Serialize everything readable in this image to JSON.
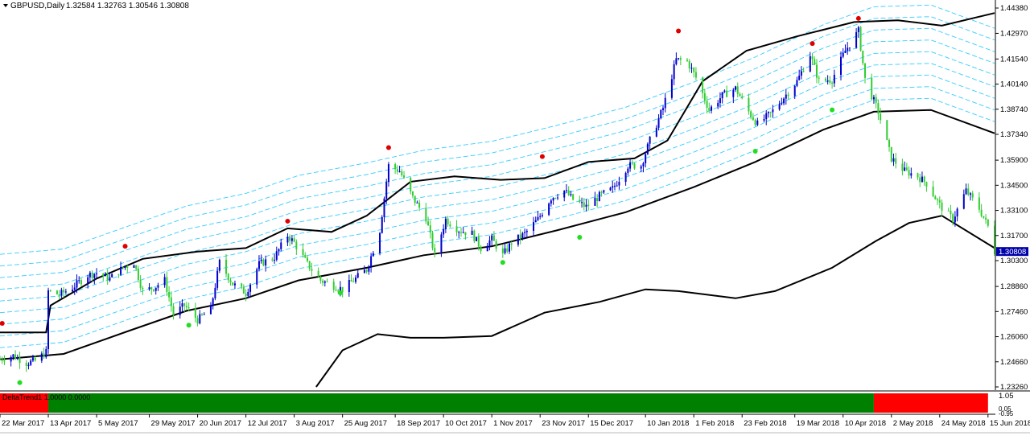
{
  "header": {
    "symbol": "GBPUSD,Daily",
    "ohlc": "1.32584 1.32763 1.30546 1.30808"
  },
  "indicator": {
    "label": "DeltaTrend1 1.0000 0.0000",
    "bull_color": "#008000",
    "bear_color": "#ff0000",
    "segments": [
      {
        "from": "22 Mar 2017",
        "to": "13 Apr 2017",
        "state": "bear"
      },
      {
        "from": "13 Apr 2017",
        "to": "24 Apr 2018",
        "state": "bull"
      },
      {
        "from": "24 Apr 2018",
        "to": "15 Jun 2018",
        "state": "bear"
      }
    ],
    "scale": [
      "1.05",
      "0.05",
      "-0.95"
    ]
  },
  "colors": {
    "bull_candle": "#0000cd",
    "bear_candle": "#32cd32",
    "band": "#000000",
    "ribbon": "#00bfff",
    "top_dot": "#e00000",
    "bottom_dot": "#22dd22",
    "price_tag": "#0000aa"
  },
  "chart_data": {
    "type": "candlestick",
    "x_axis": {
      "tick_labels": [
        "22 Mar 2017",
        "13 Apr 2017",
        "5 May 2017",
        "29 May 2017",
        "20 Jun 2017",
        "12 Jul 2017",
        "3 Aug 2017",
        "25 Aug 2017",
        "18 Sep 2017",
        "10 Oct 2017",
        "1 Nov 2017",
        "23 Nov 2017",
        "15 Dec 2017",
        "10 Jan 2018",
        "1 Feb 2018",
        "23 Feb 2018",
        "19 Mar 2018",
        "10 Apr 2018",
        "2 May 2018",
        "24 May 2018",
        "15 Jun 2018"
      ],
      "range": [
        "2017-03-22",
        "2018-06-18"
      ]
    },
    "y_axis": {
      "tick_labels": [
        "1.44380",
        "1.42970",
        "1.41540",
        "1.40140",
        "1.38740",
        "1.37340",
        "1.35900",
        "1.34500",
        "1.33100",
        "1.31700",
        "1.30300",
        "1.28860",
        "1.27460",
        "1.26060",
        "1.24660",
        "1.23260"
      ],
      "range": [
        1.2326,
        1.4438
      ]
    },
    "last_price": "1.30808",
    "close_path": [
      [
        "2017-03-22",
        1.248
      ],
      [
        "2017-03-28",
        1.25
      ],
      [
        "2017-04-03",
        1.246
      ],
      [
        "2017-04-07",
        1.247
      ],
      [
        "2017-04-12",
        1.252
      ],
      [
        "2017-04-13",
        1.286
      ],
      [
        "2017-04-18",
        1.284
      ],
      [
        "2017-04-24",
        1.288
      ],
      [
        "2017-05-01",
        1.295
      ],
      [
        "2017-05-05",
        1.296
      ],
      [
        "2017-05-11",
        1.293
      ],
      [
        "2017-05-17",
        1.299
      ],
      [
        "2017-05-22",
        1.302
      ],
      [
        "2017-05-26",
        1.286
      ],
      [
        "2017-05-31",
        1.288
      ],
      [
        "2017-06-05",
        1.292
      ],
      [
        "2017-06-09",
        1.273
      ],
      [
        "2017-06-14",
        1.278
      ],
      [
        "2017-06-20",
        1.27
      ],
      [
        "2017-06-26",
        1.276
      ],
      [
        "2017-06-30",
        1.302
      ],
      [
        "2017-07-06",
        1.29
      ],
      [
        "2017-07-12",
        1.285
      ],
      [
        "2017-07-18",
        1.301
      ],
      [
        "2017-07-25",
        1.305
      ],
      [
        "2017-07-31",
        1.317
      ],
      [
        "2017-08-03",
        1.313
      ],
      [
        "2017-08-09",
        1.301
      ],
      [
        "2017-08-15",
        1.292
      ],
      [
        "2017-08-21",
        1.289
      ],
      [
        "2017-08-25",
        1.287
      ],
      [
        "2017-08-31",
        1.293
      ],
      [
        "2017-09-05",
        1.298
      ],
      [
        "2017-09-11",
        1.32
      ],
      [
        "2017-09-15",
        1.356
      ],
      [
        "2017-09-20",
        1.353
      ],
      [
        "2017-09-26",
        1.338
      ],
      [
        "2017-10-02",
        1.327
      ],
      [
        "2017-10-06",
        1.306
      ],
      [
        "2017-10-11",
        1.326
      ],
      [
        "2017-10-17",
        1.32
      ],
      [
        "2017-10-23",
        1.318
      ],
      [
        "2017-10-27",
        1.31
      ],
      [
        "2017-11-01",
        1.315
      ],
      [
        "2017-11-06",
        1.306
      ],
      [
        "2017-11-10",
        1.313
      ],
      [
        "2017-11-16",
        1.318
      ],
      [
        "2017-11-22",
        1.326
      ],
      [
        "2017-11-28",
        1.338
      ],
      [
        "2017-12-04",
        1.342
      ],
      [
        "2017-12-08",
        1.337
      ],
      [
        "2017-12-14",
        1.333
      ],
      [
        "2017-12-20",
        1.339
      ],
      [
        "2017-12-26",
        1.343
      ],
      [
        "2018-01-02",
        1.356
      ],
      [
        "2018-01-08",
        1.356
      ],
      [
        "2018-01-12",
        1.37
      ],
      [
        "2018-01-18",
        1.388
      ],
      [
        "2018-01-24",
        1.415
      ],
      [
        "2018-01-29",
        1.414
      ],
      [
        "2018-02-02",
        1.405
      ],
      [
        "2018-02-08",
        1.387
      ],
      [
        "2018-02-14",
        1.395
      ],
      [
        "2018-02-20",
        1.399
      ],
      [
        "2018-02-26",
        1.386
      ],
      [
        "2018-03-02",
        1.379
      ],
      [
        "2018-03-08",
        1.385
      ],
      [
        "2018-03-14",
        1.394
      ],
      [
        "2018-03-20",
        1.403
      ],
      [
        "2018-03-26",
        1.418
      ],
      [
        "2018-03-30",
        1.403
      ],
      [
        "2018-04-05",
        1.404
      ],
      [
        "2018-04-11",
        1.42
      ],
      [
        "2018-04-17",
        1.431
      ],
      [
        "2018-04-20",
        1.404
      ],
      [
        "2018-04-26",
        1.386
      ],
      [
        "2018-05-02",
        1.36
      ],
      [
        "2018-05-08",
        1.353
      ],
      [
        "2018-05-14",
        1.35
      ],
      [
        "2018-05-18",
        1.346
      ],
      [
        "2018-05-24",
        1.334
      ],
      [
        "2018-05-30",
        1.326
      ],
      [
        "2018-06-05",
        1.342
      ],
      [
        "2018-06-11",
        1.332
      ],
      [
        "2018-06-15",
        1.322
      ],
      [
        "2018-06-18",
        1.3081
      ]
    ],
    "upper_band": [
      [
        "2017-03-22",
        1.263
      ],
      [
        "2017-04-12",
        1.263
      ],
      [
        "2017-04-14",
        1.278
      ],
      [
        "2017-05-05",
        1.293
      ],
      [
        "2017-05-26",
        1.304
      ],
      [
        "2017-06-20",
        1.308
      ],
      [
        "2017-07-12",
        1.31
      ],
      [
        "2017-07-31",
        1.321
      ],
      [
        "2017-08-20",
        1.319
      ],
      [
        "2017-09-05",
        1.328
      ],
      [
        "2017-09-25",
        1.347
      ],
      [
        "2017-10-15",
        1.35
      ],
      [
        "2017-11-05",
        1.348
      ],
      [
        "2017-11-25",
        1.349
      ],
      [
        "2017-12-15",
        1.358
      ],
      [
        "2018-01-05",
        1.36
      ],
      [
        "2018-01-20",
        1.37
      ],
      [
        "2018-02-05",
        1.403
      ],
      [
        "2018-02-25",
        1.42
      ],
      [
        "2018-03-20",
        1.428
      ],
      [
        "2018-04-15",
        1.436
      ],
      [
        "2018-05-05",
        1.437
      ],
      [
        "2018-05-25",
        1.434
      ],
      [
        "2018-06-18",
        1.441
      ]
    ],
    "middle_band": [
      [
        "2017-03-22",
        1.248
      ],
      [
        "2017-04-20",
        1.251
      ],
      [
        "2017-05-20",
        1.264
      ],
      [
        "2017-06-15",
        1.275
      ],
      [
        "2017-07-12",
        1.282
      ],
      [
        "2017-08-05",
        1.292
      ],
      [
        "2017-09-05",
        1.299
      ],
      [
        "2017-10-01",
        1.306
      ],
      [
        "2017-11-01",
        1.311
      ],
      [
        "2017-12-01",
        1.32
      ],
      [
        "2018-01-01",
        1.33
      ],
      [
        "2018-02-01",
        1.344
      ],
      [
        "2018-03-01",
        1.358
      ],
      [
        "2018-04-01",
        1.376
      ],
      [
        "2018-04-24",
        1.386
      ],
      [
        "2018-05-20",
        1.387
      ],
      [
        "2018-06-18",
        1.374
      ]
    ],
    "lower_band": [
      [
        "2017-08-13",
        1.2326
      ],
      [
        "2017-08-25",
        1.253
      ],
      [
        "2017-09-10",
        1.262
      ],
      [
        "2017-09-25",
        1.26
      ],
      [
        "2017-10-10",
        1.26
      ],
      [
        "2017-11-01",
        1.261
      ],
      [
        "2017-11-25",
        1.274
      ],
      [
        "2017-12-20",
        1.28
      ],
      [
        "2018-01-10",
        1.287
      ],
      [
        "2018-01-25",
        1.286
      ],
      [
        "2018-02-20",
        1.282
      ],
      [
        "2018-03-10",
        1.286
      ],
      [
        "2018-04-05",
        1.299
      ],
      [
        "2018-04-25",
        1.314
      ],
      [
        "2018-05-10",
        1.324
      ],
      [
        "2018-05-25",
        1.328
      ],
      [
        "2018-06-18",
        1.31
      ]
    ],
    "top_markers": [
      [
        "2017-03-23",
        1.268
      ],
      [
        "2017-05-18",
        1.311
      ],
      [
        "2017-07-31",
        1.325
      ],
      [
        "2017-09-15",
        1.366
      ],
      [
        "2017-11-24",
        1.361
      ],
      [
        "2018-01-25",
        1.431
      ],
      [
        "2018-03-27",
        1.424
      ],
      [
        "2018-04-17",
        1.438
      ]
    ],
    "bottom_markers": [
      [
        "2017-03-31",
        1.235
      ],
      [
        "2017-06-16",
        1.267
      ],
      [
        "2017-08-24",
        1.285
      ],
      [
        "2017-11-06",
        1.302
      ],
      [
        "2017-12-11",
        1.316
      ],
      [
        "2018-03-01",
        1.364
      ],
      [
        "2018-04-05",
        1.387
      ]
    ]
  }
}
